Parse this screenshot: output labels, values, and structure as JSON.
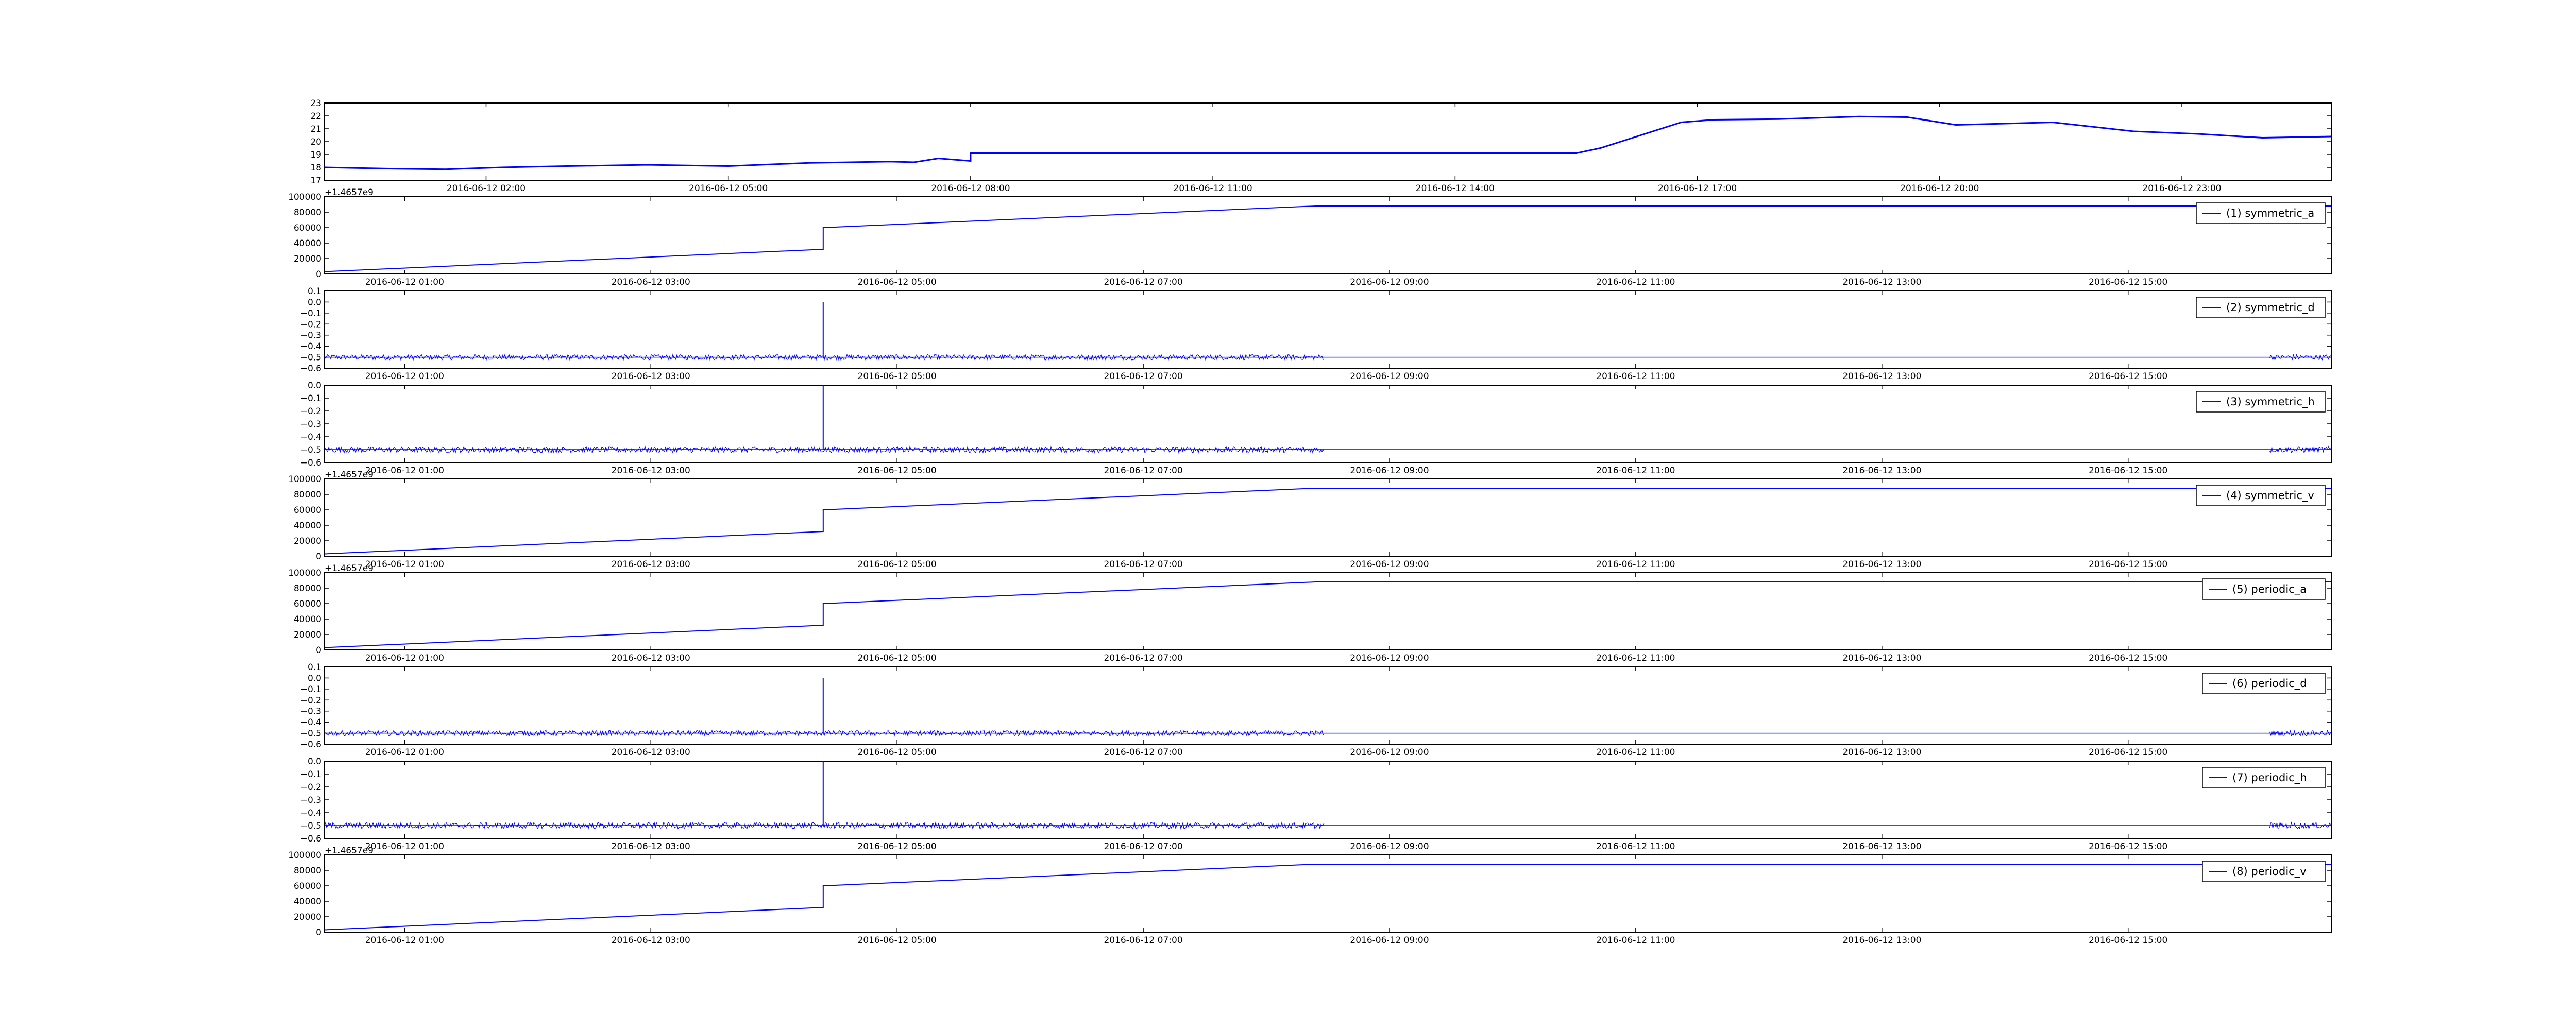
{
  "figure": {
    "background": "#ffffff",
    "line_color": "#0000ff"
  },
  "chart_data": [
    {
      "type": "line",
      "title": "",
      "xlabel": "",
      "ylabel": "",
      "legend": "",
      "ylim": [
        17,
        23
      ],
      "yticks": [
        17,
        18,
        19,
        20,
        21,
        22,
        23
      ],
      "xticks": [
        "2016-06-12 02:00",
        "2016-06-12 05:00",
        "2016-06-12 08:00",
        "2016-06-12 11:00",
        "2016-06-12 14:00",
        "2016-06-12 17:00",
        "2016-06-12 20:00",
        "2016-06-12 23:00"
      ],
      "xlim_hours": [
        0,
        24.85
      ],
      "tick_hours": [
        2,
        5,
        8,
        11,
        14,
        17,
        20,
        23
      ],
      "series": [
        {
          "x": [
            0,
            0.8,
            1.5,
            2.2,
            3,
            4,
            5,
            6,
            7,
            7.3,
            7.6,
            8.0,
            8.0,
            15.5,
            15.8,
            16.3,
            16.8,
            17.2,
            18,
            19,
            19.6,
            20.2,
            21.4,
            22.4,
            23.2,
            24,
            24.85
          ],
          "y": [
            18.0,
            17.9,
            17.85,
            18.0,
            18.1,
            18.2,
            18.1,
            18.35,
            18.45,
            18.4,
            18.7,
            18.5,
            19.1,
            19.1,
            19.5,
            20.5,
            21.5,
            21.7,
            21.75,
            21.95,
            21.9,
            21.3,
            21.5,
            20.8,
            20.6,
            20.3,
            20.4
          ]
        }
      ]
    },
    {
      "type": "line",
      "title": "",
      "ylim": [
        0,
        100000
      ],
      "yticks": [
        0,
        20000,
        40000,
        60000,
        80000,
        100000
      ],
      "offset_text": "+1.4657e9",
      "xticks": [
        "2016-06-12 01:00",
        "2016-06-12 03:00",
        "2016-06-12 05:00",
        "2016-06-12 07:00",
        "2016-06-12 09:00",
        "2016-06-12 11:00",
        "2016-06-12 13:00",
        "2016-06-12 15:00"
      ],
      "xlim_hours": [
        0.35,
        16.65
      ],
      "tick_hours": [
        1,
        3,
        5,
        7,
        9,
        11,
        13,
        15
      ],
      "legend": "(1) symmetric_a",
      "series": [
        {
          "name": "(1) symmetric_a",
          "x": [
            0.35,
            4.4,
            4.4,
            8.4,
            16.65
          ],
          "y": [
            3000,
            32000,
            60000,
            88000,
            88000
          ]
        }
      ]
    },
    {
      "type": "line",
      "title": "",
      "ylim": [
        -0.6,
        0.1
      ],
      "yticks": [
        -0.6,
        -0.5,
        -0.4,
        -0.3,
        -0.2,
        -0.1,
        0.0,
        0.1
      ],
      "xticks": [
        "2016-06-12 01:00",
        "2016-06-12 03:00",
        "2016-06-12 05:00",
        "2016-06-12 07:00",
        "2016-06-12 09:00",
        "2016-06-12 11:00",
        "2016-06-12 13:00",
        "2016-06-12 15:00"
      ],
      "xlim_hours": [
        0.35,
        16.65
      ],
      "tick_hours": [
        1,
        3,
        5,
        7,
        9,
        11,
        13,
        15
      ],
      "legend": "(2) symmetric_d",
      "spike": {
        "x": 4.4,
        "y": 0.0
      },
      "series": [
        {
          "name": "(2) symmetric_d",
          "baseline": -0.5,
          "noise": 0.015,
          "noisy_ranges": [
            [
              0.35,
              8.47
            ],
            [
              16.15,
              16.65
            ]
          ],
          "x": [
            0.35,
            16.65
          ],
          "y": [
            -0.5,
            -0.5
          ]
        }
      ]
    },
    {
      "type": "line",
      "title": "",
      "ylim": [
        -0.6,
        0.0
      ],
      "yticks": [
        -0.6,
        -0.5,
        -0.4,
        -0.3,
        -0.2,
        -0.1,
        0.0
      ],
      "xticks": [
        "2016-06-12 01:00",
        "2016-06-12 03:00",
        "2016-06-12 05:00",
        "2016-06-12 07:00",
        "2016-06-12 09:00",
        "2016-06-12 11:00",
        "2016-06-12 13:00",
        "2016-06-12 15:00"
      ],
      "xlim_hours": [
        0.35,
        16.65
      ],
      "tick_hours": [
        1,
        3,
        5,
        7,
        9,
        11,
        13,
        15
      ],
      "legend": "(3) symmetric_h",
      "spike": {
        "x": 4.4,
        "y": 0.0
      },
      "series": [
        {
          "name": "(3) symmetric_h",
          "baseline": -0.5,
          "noise": 0.015,
          "noisy_ranges": [
            [
              0.35,
              8.47
            ],
            [
              16.15,
              16.65
            ]
          ],
          "x": [
            0.35,
            16.65
          ],
          "y": [
            -0.5,
            -0.5
          ]
        }
      ]
    },
    {
      "type": "line",
      "title": "",
      "ylim": [
        0,
        100000
      ],
      "yticks": [
        0,
        20000,
        40000,
        60000,
        80000,
        100000
      ],
      "offset_text": "+1.4657e9",
      "xticks": [
        "2016-06-12 01:00",
        "2016-06-12 03:00",
        "2016-06-12 05:00",
        "2016-06-12 07:00",
        "2016-06-12 09:00",
        "2016-06-12 11:00",
        "2016-06-12 13:00",
        "2016-06-12 15:00"
      ],
      "xlim_hours": [
        0.35,
        16.65
      ],
      "tick_hours": [
        1,
        3,
        5,
        7,
        9,
        11,
        13,
        15
      ],
      "legend": "(4) symmetric_v",
      "series": [
        {
          "name": "(4) symmetric_v",
          "x": [
            0.35,
            4.4,
            4.4,
            8.4,
            16.65
          ],
          "y": [
            3000,
            32000,
            60000,
            88000,
            88000
          ]
        }
      ]
    },
    {
      "type": "line",
      "title": "",
      "ylim": [
        0,
        100000
      ],
      "yticks": [
        0,
        20000,
        40000,
        60000,
        80000,
        100000
      ],
      "offset_text": "+1.4657e9",
      "xticks": [
        "2016-06-12 01:00",
        "2016-06-12 03:00",
        "2016-06-12 05:00",
        "2016-06-12 07:00",
        "2016-06-12 09:00",
        "2016-06-12 11:00",
        "2016-06-12 13:00",
        "2016-06-12 15:00"
      ],
      "xlim_hours": [
        0.35,
        16.65
      ],
      "tick_hours": [
        1,
        3,
        5,
        7,
        9,
        11,
        13,
        15
      ],
      "legend": "(5) periodic_a",
      "series": [
        {
          "name": "(5) periodic_a",
          "x": [
            0.35,
            4.4,
            4.4,
            8.4,
            16.65
          ],
          "y": [
            3000,
            32000,
            60000,
            88000,
            88000
          ]
        }
      ]
    },
    {
      "type": "line",
      "title": "",
      "ylim": [
        -0.6,
        0.1
      ],
      "yticks": [
        -0.6,
        -0.5,
        -0.4,
        -0.3,
        -0.2,
        -0.1,
        0.0,
        0.1
      ],
      "xticks": [
        "2016-06-12 01:00",
        "2016-06-12 03:00",
        "2016-06-12 05:00",
        "2016-06-12 07:00",
        "2016-06-12 09:00",
        "2016-06-12 11:00",
        "2016-06-12 13:00",
        "2016-06-12 15:00"
      ],
      "xlim_hours": [
        0.35,
        16.65
      ],
      "tick_hours": [
        1,
        3,
        5,
        7,
        9,
        11,
        13,
        15
      ],
      "legend": "(6) periodic_d",
      "spike": {
        "x": 4.4,
        "y": 0.0
      },
      "series": [
        {
          "name": "(6) periodic_d",
          "baseline": -0.5,
          "noise": 0.015,
          "noisy_ranges": [
            [
              0.35,
              8.47
            ],
            [
              16.15,
              16.65
            ]
          ],
          "x": [
            0.35,
            16.65
          ],
          "y": [
            -0.5,
            -0.5
          ]
        }
      ]
    },
    {
      "type": "line",
      "title": "",
      "ylim": [
        -0.6,
        0.0
      ],
      "yticks": [
        -0.6,
        -0.5,
        -0.4,
        -0.3,
        -0.2,
        -0.1,
        0.0
      ],
      "xticks": [
        "2016-06-12 01:00",
        "2016-06-12 03:00",
        "2016-06-12 05:00",
        "2016-06-12 07:00",
        "2016-06-12 09:00",
        "2016-06-12 11:00",
        "2016-06-12 13:00",
        "2016-06-12 15:00"
      ],
      "xlim_hours": [
        0.35,
        16.65
      ],
      "tick_hours": [
        1,
        3,
        5,
        7,
        9,
        11,
        13,
        15
      ],
      "legend": "(7) periodic_h",
      "spike": {
        "x": 4.4,
        "y": 0.0
      },
      "series": [
        {
          "name": "(7) periodic_h",
          "baseline": -0.5,
          "noise": 0.015,
          "noisy_ranges": [
            [
              0.35,
              8.47
            ],
            [
              16.15,
              16.65
            ]
          ],
          "x": [
            0.35,
            16.65
          ],
          "y": [
            -0.5,
            -0.5
          ]
        }
      ]
    },
    {
      "type": "line",
      "title": "",
      "ylim": [
        0,
        100000
      ],
      "yticks": [
        0,
        20000,
        40000,
        60000,
        80000,
        100000
      ],
      "offset_text": "+1.4657e9",
      "xticks": [
        "2016-06-12 01:00",
        "2016-06-12 03:00",
        "2016-06-12 05:00",
        "2016-06-12 07:00",
        "2016-06-12 09:00",
        "2016-06-12 11:00",
        "2016-06-12 13:00",
        "2016-06-12 15:00"
      ],
      "xlim_hours": [
        0.35,
        16.65
      ],
      "tick_hours": [
        1,
        3,
        5,
        7,
        9,
        11,
        13,
        15
      ],
      "legend": "(8) periodic_v",
      "series": [
        {
          "name": "(8) periodic_v",
          "x": [
            0.35,
            4.4,
            4.4,
            8.4,
            16.65
          ],
          "y": [
            3000,
            32000,
            60000,
            88000,
            88000
          ]
        }
      ]
    }
  ]
}
